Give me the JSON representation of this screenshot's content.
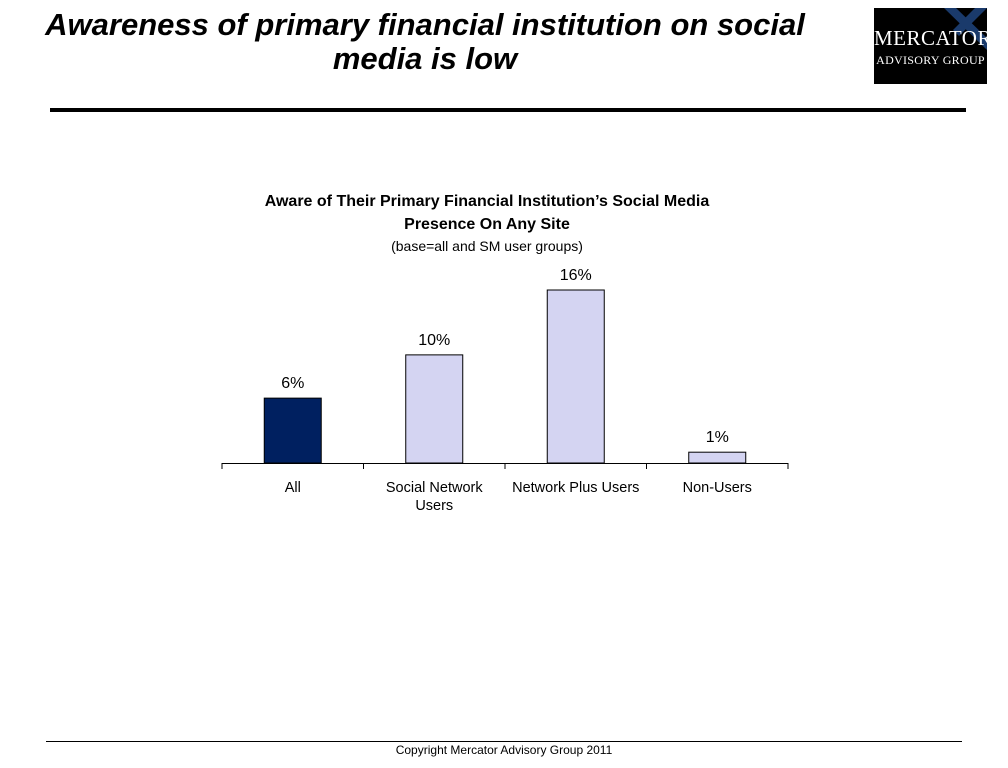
{
  "slide": {
    "title": "Awareness of primary financial institution on social media is low",
    "footer": "Copyright Mercator Advisory Group 2011"
  },
  "logo": {
    "name": "Mercator",
    "subtitle": "Advisory Group",
    "background": "#000000",
    "accent": "#1a3a6b"
  },
  "chart_data": {
    "type": "bar",
    "title_lines": [
      "Aware of Their Primary Financial Institution’s Social Media",
      "Presence On Any Site"
    ],
    "subtitle": "(base=all and SM user groups)",
    "categories": [
      [
        "All"
      ],
      [
        "Social Network",
        "Users"
      ],
      [
        "Network Plus Users"
      ],
      [
        "Non-Users"
      ]
    ],
    "values": [
      6,
      10,
      16,
      1
    ],
    "labels": [
      "6%",
      "10%",
      "16%",
      "1%"
    ],
    "colors": [
      "#002060",
      "#d4d4f2",
      "#d4d4f2",
      "#d4d4f2"
    ],
    "bar_outline": "#000000",
    "ylim": [
      0,
      16
    ],
    "xlabel": "",
    "ylabel": "",
    "grid": false,
    "legend": "none"
  }
}
